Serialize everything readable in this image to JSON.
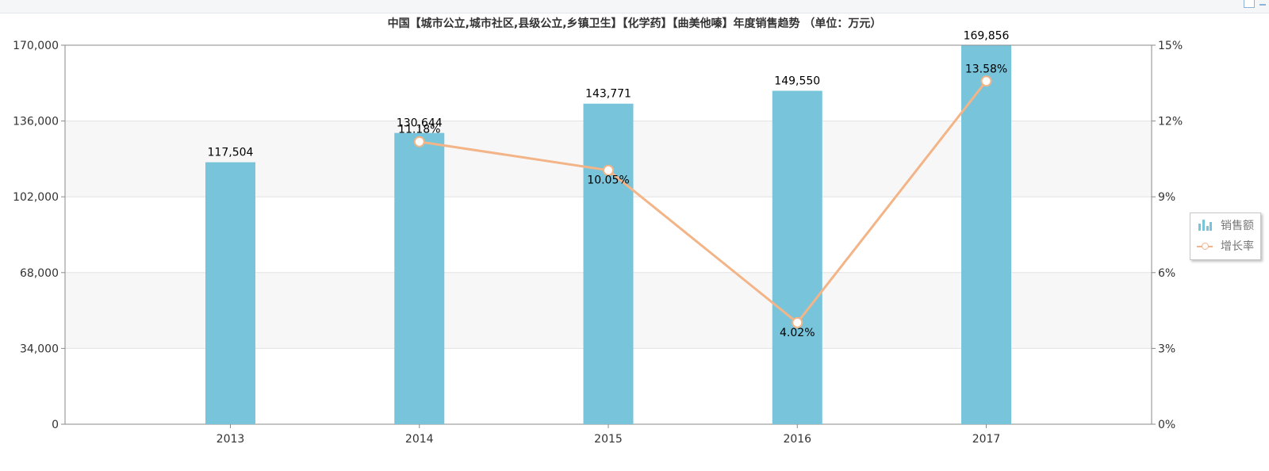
{
  "colors": {
    "bar": "#78c4db",
    "line": "#f3b487",
    "band": "#f7f7f7",
    "axis": "#8a8a8a",
    "grid": "#e2e2e2",
    "text": "#333333"
  },
  "legend": {
    "items": [
      {
        "label": "销售额",
        "icon": "bar-chart-icon"
      },
      {
        "label": "增长率",
        "icon": "line-marker-icon"
      }
    ]
  },
  "chart_data": {
    "type": "bar",
    "title": "中国【城市公立,城市社区,县级公立,乡镇卫生】【化学药】【曲美他嗪】年度销售趋势 （单位：万元）",
    "categories": [
      "2013",
      "2014",
      "2015",
      "2016",
      "2017"
    ],
    "series": [
      {
        "name": "销售额",
        "type": "bar",
        "axis": "left",
        "values": [
          117504,
          130644,
          143771,
          149550,
          169856
        ],
        "labels": [
          "117,504",
          "130,644",
          "143,771",
          "149,550",
          "169,856"
        ]
      },
      {
        "name": "增长率",
        "type": "line",
        "axis": "right",
        "values": [
          null,
          11.18,
          10.05,
          4.02,
          13.58
        ],
        "labels": [
          "",
          "11.18%",
          "10.05%",
          "4.02%",
          "13.58%"
        ]
      }
    ],
    "y_left": {
      "ylim": [
        0,
        170000
      ],
      "ticks": [
        0,
        34000,
        68000,
        102000,
        136000,
        170000
      ],
      "tick_labels": [
        "0",
        "34,000",
        "68,000",
        "102,000",
        "136,000",
        "170,000"
      ]
    },
    "y_right": {
      "ylim": [
        0,
        15
      ],
      "ticks": [
        0,
        3,
        6,
        9,
        12,
        15
      ],
      "tick_labels": [
        "0%",
        "3%",
        "6%",
        "9%",
        "12%",
        "15%"
      ]
    },
    "grid": true,
    "legend_position": "right"
  }
}
